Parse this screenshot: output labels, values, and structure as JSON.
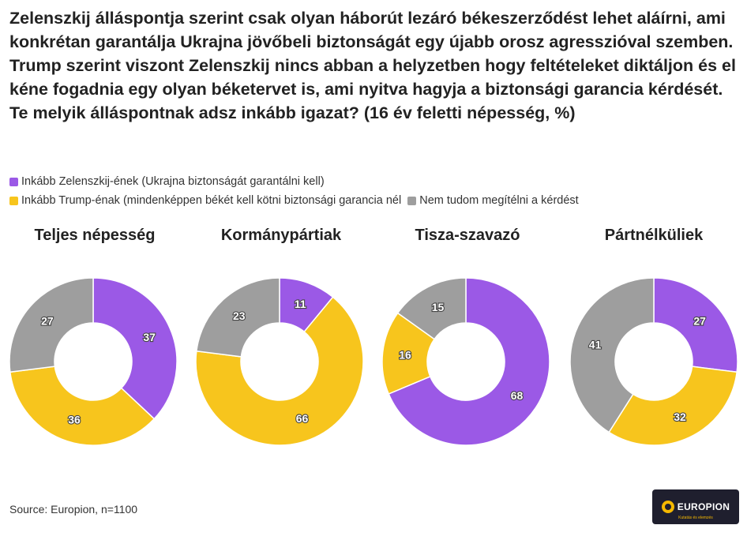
{
  "title": "Zelenszkij álláspontja szerint csak olyan háborút lezáró békeszerződést lehet aláírni, ami konkrétan garantálja Ukrajna jövőbeli biztonságát egy újabb orosz agresszióval szemben. Trump szerint viszont Zelenszkij nincs abban a helyzetben hogy feltételeket diktáljon és el kéne fogadnia egy olyan béketervet is, ami nyitva hagyja a biztonsági garancia kérdését. Te melyik álláspontnak adsz inkább igazat? (16 év feletti népesség, %)",
  "legend": [
    {
      "label": "Inkább Zelenszkij-ének (Ukrajna biztonságát garantálni kell)",
      "color": "#9b59e6"
    },
    {
      "label": "Inkább Trump-énak (mindenképpen békét kell kötni biztonsági garancia nél",
      "color": "#f7c51d"
    },
    {
      "label": "Nem tudom megítélni a kérdést",
      "color": "#9e9e9e"
    }
  ],
  "chart_data": [
    {
      "type": "pie",
      "title": "Teljes népesség",
      "categories": [
        "Inkább Zelenszkij-ének",
        "Inkább Trump-énak",
        "Nem tudom megítélni a kérdést"
      ],
      "values": [
        37,
        36,
        27
      ]
    },
    {
      "type": "pie",
      "title": "Kormánypártiak",
      "categories": [
        "Inkább Zelenszkij-ének",
        "Inkább Trump-énak",
        "Nem tudom megítélni a kérdést"
      ],
      "values": [
        11,
        66,
        23
      ]
    },
    {
      "type": "pie",
      "title": "Tisza-szavazó",
      "categories": [
        "Inkább Zelenszkij-ének",
        "Inkább Trump-énak",
        "Nem tudom megítélni a kérdést"
      ],
      "values": [
        68,
        16,
        15
      ]
    },
    {
      "type": "pie",
      "title": "Pártnélküliek",
      "categories": [
        "Inkább Zelenszkij-ének",
        "Inkább Trump-énak",
        "Nem tudom megítélni a kérdést"
      ],
      "values": [
        27,
        32,
        41
      ]
    }
  ],
  "source": "Source: Europion, n=1100",
  "logo": {
    "text": "EUROPION",
    "tagline": "Kutatás és elemzés"
  }
}
